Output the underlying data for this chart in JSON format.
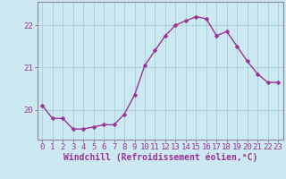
{
  "x": [
    0,
    1,
    2,
    3,
    4,
    5,
    6,
    7,
    8,
    9,
    10,
    11,
    12,
    13,
    14,
    15,
    16,
    17,
    18,
    19,
    20,
    21,
    22,
    23
  ],
  "y": [
    20.1,
    19.8,
    19.8,
    19.55,
    19.55,
    19.6,
    19.65,
    19.65,
    19.9,
    20.35,
    21.05,
    21.4,
    21.75,
    22.0,
    22.1,
    22.2,
    22.15,
    21.75,
    21.85,
    21.5,
    21.15,
    20.85,
    20.65,
    20.65
  ],
  "line_color": "#993399",
  "marker": "D",
  "marker_size": 2.5,
  "bg_color": "#cce8f0",
  "grid_color": "#aaccdd",
  "spine_color": "#888899",
  "xlabel": "Windchill (Refroidissement éolien,°C)",
  "xlabel_color": "#993399",
  "tick_color": "#993399",
  "ytick_color": "#993399",
  "ylim": [
    19.3,
    22.55
  ],
  "xlim": [
    -0.5,
    23.5
  ],
  "yticks": [
    20,
    21,
    22
  ],
  "xticks": [
    0,
    1,
    2,
    3,
    4,
    5,
    6,
    7,
    8,
    9,
    10,
    11,
    12,
    13,
    14,
    15,
    16,
    17,
    18,
    19,
    20,
    21,
    22,
    23
  ],
  "line_width": 1.0,
  "font_size": 6.5,
  "xlabel_fontsize": 7.0
}
